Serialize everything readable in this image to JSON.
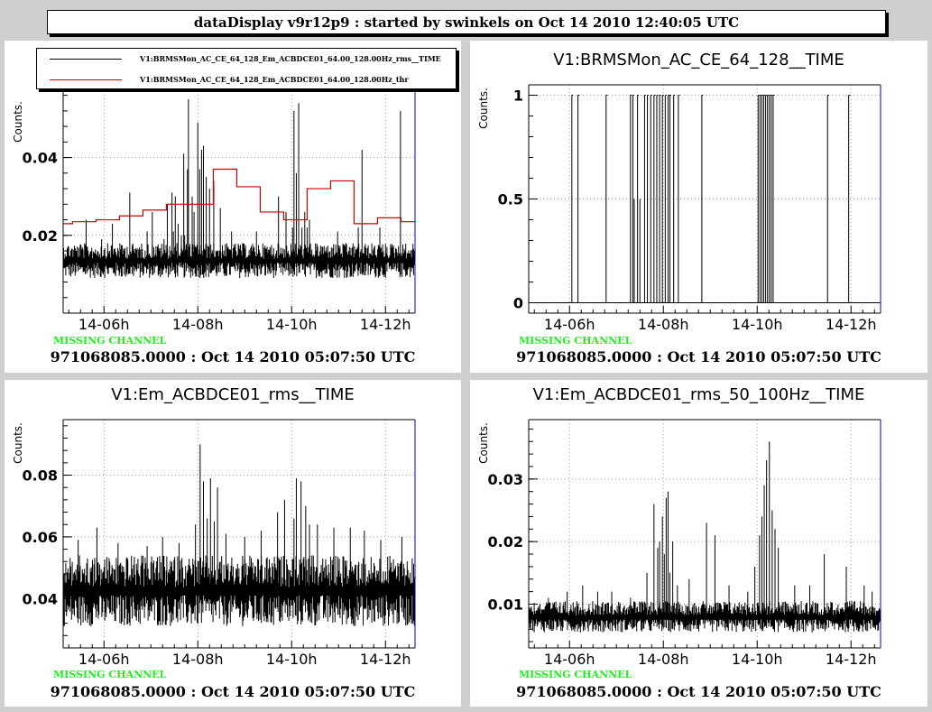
{
  "window_title": "dataDisplay v9r12p9 : started by swinkels on Oct 14 2010 12:40:05 UTC",
  "colors": {
    "background": "#cfcfcf",
    "pad": "#ffffff",
    "rms_trace": "#000000",
    "threshold_trace": "#cc0000",
    "grid": "#999999",
    "missing_channel": "#22ee22",
    "frame_right": "#0000cc"
  },
  "chart_data": [
    {
      "type": "line",
      "title": "",
      "ylabel": "Counts.",
      "xlabel": "",
      "x_unit": "hour of Oct 14 2010 (UTC)",
      "xlim": [
        5.13,
        12.63
      ],
      "ylim": [
        0.0,
        0.058
      ],
      "xticks": [
        6,
        8,
        10,
        12
      ],
      "xtick_labels": [
        "14-06h",
        "14-08h",
        "14-10h",
        "14-12h"
      ],
      "yticks": [
        0.02,
        0.04
      ],
      "ytick_labels": [
        "0.02",
        "0.04"
      ],
      "grid": true,
      "legend_position": "top-left",
      "status_text": "MISSING CHANNEL",
      "footer": "971068085.0000 : Oct 14 2010 05:07:50 UTC",
      "noise": {
        "band": [
          0.009,
          0.018
        ],
        "center": 0.013
      },
      "series": [
        {
          "name": "V1:BRMSMon_AC_CE_64_128_Em_ACBDCE01_64.00_128.00Hz_rms__TIME",
          "style": "noise",
          "color": "#000000",
          "spikes": [
            [
              5.62,
              0.024
            ],
            [
              5.95,
              0.019
            ],
            [
              6.18,
              0.023
            ],
            [
              6.55,
              0.031
            ],
            [
              6.92,
              0.021
            ],
            [
              7.03,
              0.026
            ],
            [
              7.28,
              0.019
            ],
            [
              7.35,
              0.028
            ],
            [
              7.45,
              0.031
            ],
            [
              7.48,
              0.021
            ],
            [
              7.52,
              0.03
            ],
            [
              7.58,
              0.023
            ],
            [
              7.65,
              0.02
            ],
            [
              7.7,
              0.041
            ],
            [
              7.72,
              0.02
            ],
            [
              7.78,
              0.037
            ],
            [
              7.8,
              0.055
            ],
            [
              7.88,
              0.03
            ],
            [
              7.92,
              0.026
            ],
            [
              8.0,
              0.049
            ],
            [
              8.04,
              0.037
            ],
            [
              8.08,
              0.042
            ],
            [
              8.12,
              0.043
            ],
            [
              8.18,
              0.035
            ],
            [
              8.25,
              0.032
            ],
            [
              8.34,
              0.034
            ],
            [
              8.48,
              0.027
            ],
            [
              8.72,
              0.021
            ],
            [
              9.25,
              0.021
            ],
            [
              9.72,
              0.03
            ],
            [
              9.88,
              0.026
            ],
            [
              10.02,
              0.022
            ],
            [
              10.05,
              0.052
            ],
            [
              10.1,
              0.036
            ],
            [
              10.15,
              0.054
            ],
            [
              10.22,
              0.022
            ],
            [
              10.28,
              0.026
            ],
            [
              10.33,
              0.022
            ],
            [
              10.38,
              0.024
            ],
            [
              10.98,
              0.021
            ],
            [
              11.42,
              0.022
            ],
            [
              11.5,
              0.042
            ],
            [
              11.88,
              0.022
            ],
            [
              12.32,
              0.052
            ]
          ]
        },
        {
          "name": "V1:BRMSMon_AC_CE_64_128_Em_ACBDCE01_64.00_128.00Hz_thr",
          "style": "step",
          "color": "#cc0000",
          "points": [
            [
              5.13,
              0.023
            ],
            [
              5.33,
              0.0235
            ],
            [
              5.83,
              0.024
            ],
            [
              6.33,
              0.025
            ],
            [
              6.83,
              0.0265
            ],
            [
              7.33,
              0.028
            ],
            [
              7.83,
              0.028
            ],
            [
              8.33,
              0.037
            ],
            [
              8.83,
              0.0325
            ],
            [
              9.33,
              0.026
            ],
            [
              9.83,
              0.024
            ],
            [
              10.33,
              0.032
            ],
            [
              10.83,
              0.034
            ],
            [
              11.33,
              0.023
            ],
            [
              11.83,
              0.0245
            ],
            [
              12.33,
              0.0235
            ],
            [
              12.63,
              0.0235
            ]
          ]
        }
      ]
    },
    {
      "type": "line",
      "title": "V1:BRMSMon_AC_CE_64_128__TIME",
      "ylabel": "Counts.",
      "xlabel": "",
      "x_unit": "hour of Oct 14 2010 (UTC)",
      "xlim": [
        5.13,
        12.63
      ],
      "ylim": [
        -0.05,
        1.05
      ],
      "xticks": [
        6,
        8,
        10,
        12
      ],
      "xtick_labels": [
        "14-06h",
        "14-08h",
        "14-10h",
        "14-12h"
      ],
      "yticks": [
        0,
        0.5,
        1
      ],
      "ytick_labels": [
        "0",
        "0.5",
        "1"
      ],
      "grid": true,
      "status_text": "MISSING CHANNEL",
      "footer": "971068085.0000 : Oct 14 2010 05:07:50 UTC",
      "series": [
        {
          "style": "pulses",
          "color": "#000000",
          "baseline": 0,
          "pulses": [
            [
              6.05,
              1
            ],
            [
              6.18,
              1
            ],
            [
              6.78,
              1
            ],
            [
              7.3,
              1
            ],
            [
              7.35,
              1
            ],
            [
              7.38,
              0.5
            ],
            [
              7.45,
              1
            ],
            [
              7.5,
              0.5
            ],
            [
              7.6,
              1
            ],
            [
              7.66,
              1
            ],
            [
              7.73,
              1
            ],
            [
              7.8,
              1
            ],
            [
              7.86,
              1
            ],
            [
              7.92,
              1
            ],
            [
              7.98,
              1
            ],
            [
              8.04,
              1
            ],
            [
              8.1,
              1
            ],
            [
              8.14,
              1
            ],
            [
              8.22,
              1
            ],
            [
              8.32,
              1
            ],
            [
              8.82,
              1
            ],
            [
              10.02,
              1
            ],
            [
              10.06,
              1
            ],
            [
              10.1,
              1
            ],
            [
              10.14,
              1
            ],
            [
              10.18,
              1
            ],
            [
              10.22,
              1
            ],
            [
              10.26,
              1
            ],
            [
              10.3,
              1
            ],
            [
              10.34,
              1
            ],
            [
              11.5,
              1
            ],
            [
              11.95,
              1
            ]
          ]
        }
      ]
    },
    {
      "type": "line",
      "title": "V1:Em_ACBDCE01_rms__TIME",
      "ylabel": "Counts.",
      "xlabel": "",
      "x_unit": "hour of Oct 14 2010 (UTC)",
      "xlim": [
        5.13,
        12.63
      ],
      "ylim": [
        0.024,
        0.098
      ],
      "xticks": [
        6,
        8,
        10,
        12
      ],
      "xtick_labels": [
        "14-06h",
        "14-08h",
        "14-10h",
        "14-12h"
      ],
      "yticks": [
        0.04,
        0.06,
        0.08
      ],
      "ytick_labels": [
        "0.04",
        "0.06",
        "0.08"
      ],
      "grid": true,
      "status_text": "MISSING CHANNEL",
      "footer": "971068085.0000 : Oct 14 2010 05:07:50 UTC",
      "noise": {
        "band": [
          0.031,
          0.054
        ],
        "center": 0.041
      },
      "series": [
        {
          "style": "noise",
          "color": "#000000",
          "spikes": [
            [
              5.45,
              0.059
            ],
            [
              5.85,
              0.063
            ],
            [
              6.3,
              0.058
            ],
            [
              6.92,
              0.057
            ],
            [
              7.25,
              0.06
            ],
            [
              7.6,
              0.058
            ],
            [
              7.95,
              0.064
            ],
            [
              8.05,
              0.09
            ],
            [
              8.12,
              0.078
            ],
            [
              8.2,
              0.066
            ],
            [
              8.27,
              0.079
            ],
            [
              8.35,
              0.065
            ],
            [
              8.42,
              0.076
            ],
            [
              8.6,
              0.061
            ],
            [
              9.0,
              0.06
            ],
            [
              9.35,
              0.062
            ],
            [
              9.7,
              0.068
            ],
            [
              9.85,
              0.072
            ],
            [
              10.05,
              0.066
            ],
            [
              10.1,
              0.079
            ],
            [
              10.2,
              0.078
            ],
            [
              10.3,
              0.07
            ],
            [
              10.38,
              0.064
            ],
            [
              10.55,
              0.064
            ],
            [
              10.9,
              0.063
            ],
            [
              11.25,
              0.063
            ],
            [
              11.55,
              0.062
            ],
            [
              11.9,
              0.059
            ],
            [
              12.35,
              0.06
            ]
          ]
        }
      ]
    },
    {
      "type": "line",
      "title": "V1:Em_ACBDCE01_rms_50_100Hz__TIME",
      "ylabel": "Counts.",
      "xlabel": "",
      "x_unit": "hour of Oct 14 2010 (UTC)",
      "xlim": [
        5.13,
        12.63
      ],
      "ylim": [
        0.003,
        0.0395
      ],
      "xticks": [
        6,
        8,
        10,
        12
      ],
      "xtick_labels": [
        "14-06h",
        "14-08h",
        "14-10h",
        "14-12h"
      ],
      "yticks": [
        0.01,
        0.02,
        0.03
      ],
      "ytick_labels": [
        "0.01",
        "0.02",
        "0.03"
      ],
      "grid": true,
      "status_text": "MISSING CHANNEL",
      "footer": "971068085.0000 : Oct 14 2010 05:07:50 UTC",
      "noise": {
        "band": [
          0.0055,
          0.0105
        ],
        "center": 0.0075
      },
      "series": [
        {
          "style": "noise",
          "color": "#000000",
          "spikes": [
            [
              5.55,
              0.011
            ],
            [
              5.95,
              0.012
            ],
            [
              6.28,
              0.013
            ],
            [
              6.6,
              0.012
            ],
            [
              6.9,
              0.012
            ],
            [
              7.3,
              0.011
            ],
            [
              7.65,
              0.015
            ],
            [
              7.8,
              0.026
            ],
            [
              7.88,
              0.019
            ],
            [
              7.92,
              0.02
            ],
            [
              7.98,
              0.024
            ],
            [
              8.02,
              0.018
            ],
            [
              8.06,
              0.027
            ],
            [
              8.1,
              0.028
            ],
            [
              8.14,
              0.015
            ],
            [
              8.2,
              0.02
            ],
            [
              8.3,
              0.013
            ],
            [
              8.55,
              0.014
            ],
            [
              8.92,
              0.023
            ],
            [
              9.1,
              0.021
            ],
            [
              9.4,
              0.013
            ],
            [
              9.8,
              0.012
            ],
            [
              9.95,
              0.016
            ],
            [
              10.05,
              0.021
            ],
            [
              10.1,
              0.024
            ],
            [
              10.15,
              0.029
            ],
            [
              10.2,
              0.033
            ],
            [
              10.26,
              0.036
            ],
            [
              10.32,
              0.025
            ],
            [
              10.38,
              0.022
            ],
            [
              10.45,
              0.019
            ],
            [
              10.8,
              0.013
            ],
            [
              11.12,
              0.013
            ],
            [
              11.43,
              0.018
            ],
            [
              11.9,
              0.016
            ],
            [
              12.28,
              0.013
            ],
            [
              12.45,
              0.012
            ]
          ]
        }
      ]
    }
  ]
}
